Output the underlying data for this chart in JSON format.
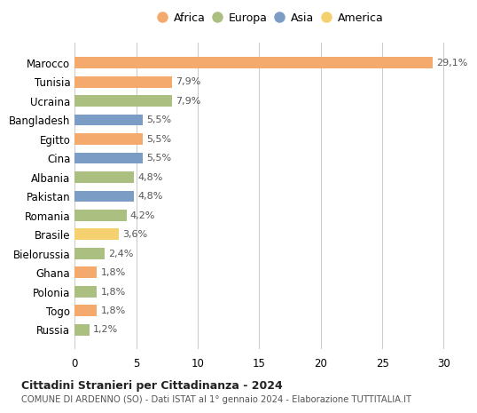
{
  "countries": [
    "Marocco",
    "Tunisia",
    "Ucraina",
    "Bangladesh",
    "Egitto",
    "Cina",
    "Albania",
    "Pakistan",
    "Romania",
    "Brasile",
    "Bielorussia",
    "Ghana",
    "Polonia",
    "Togo",
    "Russia"
  ],
  "values": [
    29.1,
    7.9,
    7.9,
    5.5,
    5.5,
    5.5,
    4.8,
    4.8,
    4.2,
    3.6,
    2.4,
    1.8,
    1.8,
    1.8,
    1.2
  ],
  "labels": [
    "29,1%",
    "7,9%",
    "7,9%",
    "5,5%",
    "5,5%",
    "5,5%",
    "4,8%",
    "4,8%",
    "4,2%",
    "3,6%",
    "2,4%",
    "1,8%",
    "1,8%",
    "1,8%",
    "1,2%"
  ],
  "continents": [
    "Africa",
    "Africa",
    "Europa",
    "Asia",
    "Africa",
    "Asia",
    "Europa",
    "Asia",
    "Europa",
    "America",
    "Europa",
    "Africa",
    "Europa",
    "Africa",
    "Europa"
  ],
  "colors": {
    "Africa": "#F4A96D",
    "Europa": "#AABF80",
    "Asia": "#7B9CC4",
    "America": "#F5D06E"
  },
  "legend_order": [
    "Africa",
    "Europa",
    "Asia",
    "America"
  ],
  "title": "Cittadini Stranieri per Cittadinanza - 2024",
  "subtitle": "COMUNE DI ARDENNO (SO) - Dati ISTAT al 1° gennaio 2024 - Elaborazione TUTTITALIA.IT",
  "xlim": [
    0,
    32
  ],
  "xticks": [
    0,
    5,
    10,
    15,
    20,
    25,
    30
  ],
  "background_color": "#ffffff",
  "grid_color": "#cccccc"
}
